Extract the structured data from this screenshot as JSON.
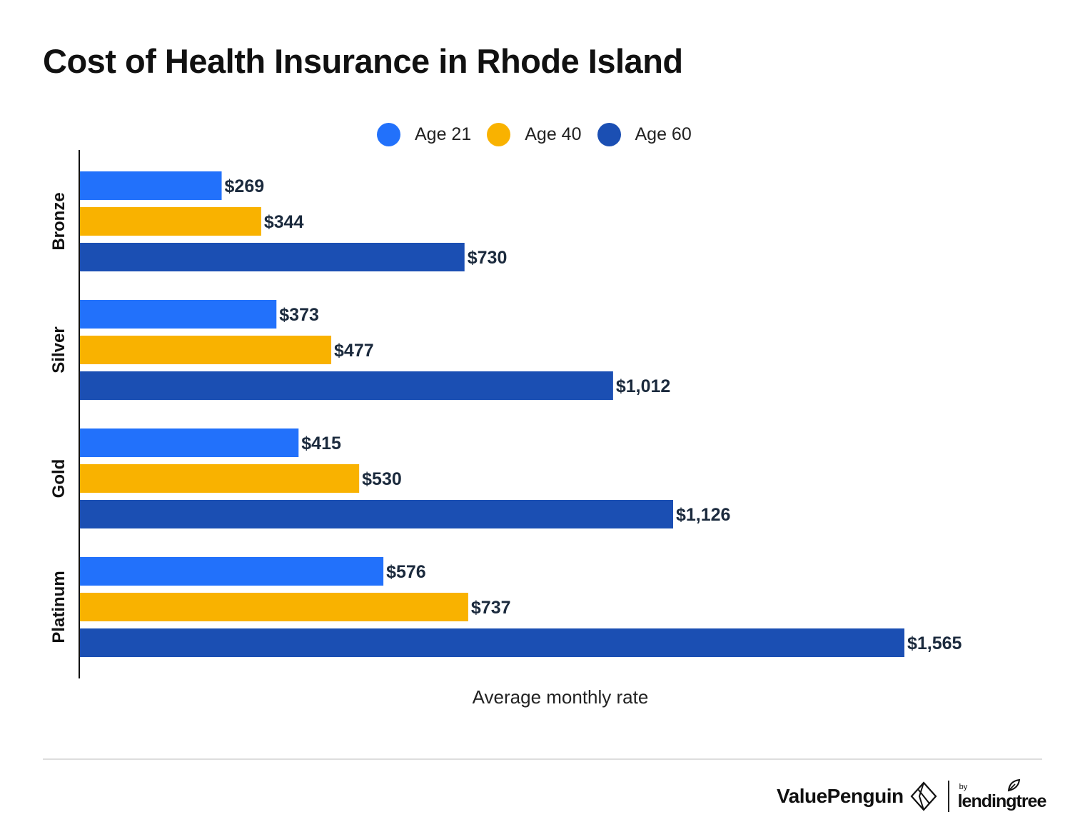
{
  "title": "Cost of Health Insurance in Rhode Island",
  "legend": [
    {
      "label": "Age 21",
      "color": "#2271fb"
    },
    {
      "label": "Age 40",
      "color": "#f9b200"
    },
    {
      "label": "Age 60",
      "color": "#1b4fb3"
    }
  ],
  "chart_data": {
    "type": "bar",
    "orientation": "horizontal",
    "categories": [
      "Bronze",
      "Silver",
      "Gold",
      "Platinum"
    ],
    "series": [
      {
        "name": "Age 21",
        "color": "#2271fb",
        "values": [
          269,
          373,
          415,
          576
        ],
        "labels": [
          "$269",
          "$373",
          "$415",
          "$576"
        ]
      },
      {
        "name": "Age 40",
        "color": "#f9b200",
        "values": [
          344,
          477,
          530,
          737
        ],
        "labels": [
          "$344",
          "$477",
          "$530",
          "$737"
        ]
      },
      {
        "name": "Age 60",
        "color": "#1b4fb3",
        "values": [
          730,
          1012,
          1126,
          1565
        ],
        "labels": [
          "$730",
          "$1,012",
          "$1,126",
          "$1,565"
        ]
      }
    ],
    "xlabel": "Average monthly rate",
    "ylabel": "",
    "xlim": [
      0,
      1565
    ],
    "grid": false,
    "legend_position": "top-center"
  },
  "footer": {
    "brand": "ValuePenguin",
    "partner_by": "by",
    "partner": "lendingtree"
  }
}
